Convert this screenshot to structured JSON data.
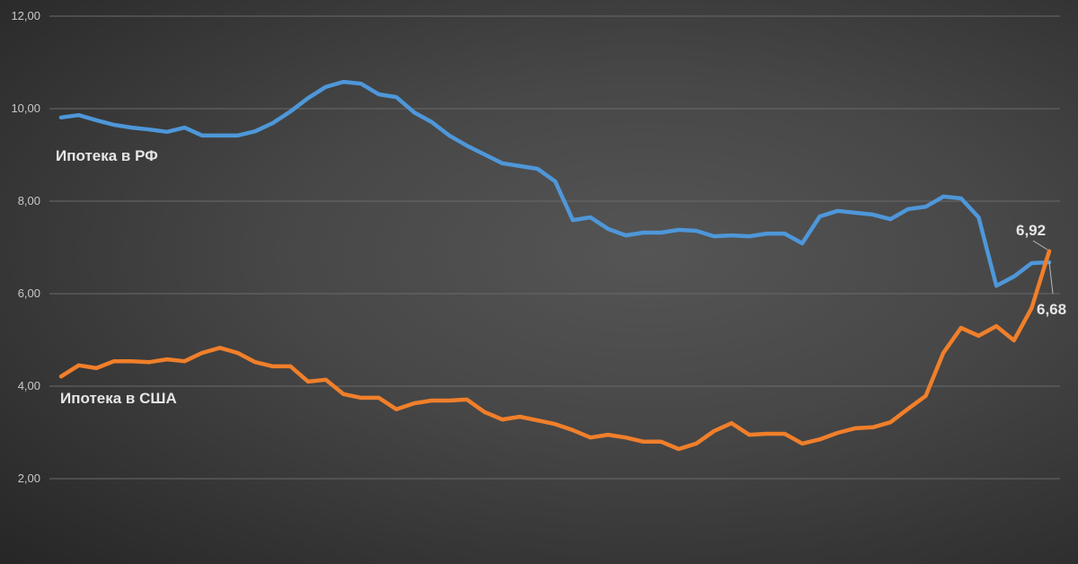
{
  "chart_data": {
    "type": "line",
    "title": "",
    "xlabel": "",
    "ylabel": "",
    "ylim": [
      0,
      12
    ],
    "yticks": [
      "2,00",
      "4,00",
      "6,00",
      "8,00",
      "10,00",
      "12,00"
    ],
    "ytick_values": [
      2,
      4,
      6,
      8,
      10,
      12
    ],
    "grid": true,
    "legend": "none",
    "series": [
      {
        "name": "Ипотека в РФ",
        "color": "#4e97d9",
        "values": [
          9.81,
          9.86,
          9.75,
          9.65,
          9.59,
          9.55,
          9.5,
          9.59,
          9.42,
          9.42,
          9.42,
          9.51,
          9.69,
          9.94,
          10.23,
          10.47,
          10.58,
          10.54,
          10.31,
          10.25,
          9.92,
          9.71,
          9.42,
          9.2,
          9.01,
          8.82,
          8.76,
          8.7,
          8.43,
          7.59,
          7.65,
          7.4,
          7.26,
          7.32,
          7.32,
          7.38,
          7.36,
          7.24,
          7.26,
          7.24,
          7.3,
          7.3,
          7.09,
          7.67,
          7.79,
          7.75,
          7.71,
          7.61,
          7.83,
          7.88,
          8.1,
          8.06,
          7.65,
          6.17,
          6.37,
          6.66,
          6.68
        ],
        "end_label": "6,68"
      },
      {
        "name": "Ипотека в США",
        "color": "#f07f2a",
        "values": [
          4.21,
          4.45,
          4.39,
          4.54,
          4.54,
          4.52,
          4.58,
          4.54,
          4.72,
          4.83,
          4.72,
          4.52,
          4.43,
          4.43,
          4.1,
          4.14,
          3.83,
          3.75,
          3.75,
          3.5,
          3.63,
          3.69,
          3.69,
          3.71,
          3.44,
          3.28,
          3.34,
          3.26,
          3.18,
          3.05,
          2.89,
          2.95,
          2.89,
          2.8,
          2.8,
          2.64,
          2.76,
          3.03,
          3.2,
          2.95,
          2.97,
          2.97,
          2.76,
          2.85,
          2.99,
          3.09,
          3.11,
          3.22,
          3.51,
          3.79,
          4.72,
          5.26,
          5.09,
          5.3,
          4.99,
          5.69,
          6.92
        ],
        "end_label": "6,92"
      }
    ]
  }
}
